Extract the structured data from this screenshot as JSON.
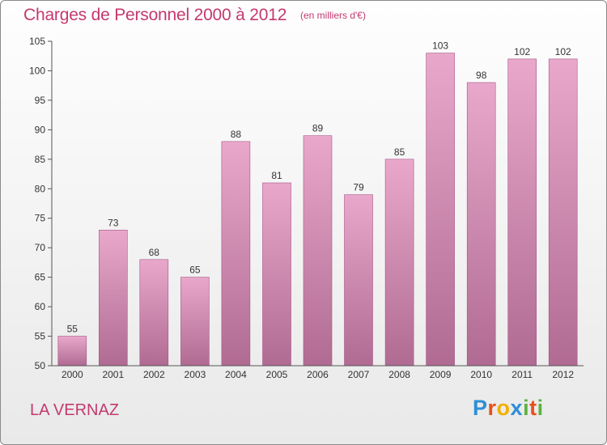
{
  "title": "Charges de Personnel 2000 à 2012",
  "subtitle": "(en milliers d'€)",
  "commune": "LA VERNAZ",
  "logo": {
    "letters": [
      "P",
      "r",
      "o",
      "x",
      "i",
      "t",
      "i"
    ],
    "colors": [
      "#2d8fd6",
      "#e8501a",
      "#f2b000",
      "#2d8fd6",
      "#59b33d",
      "#e8501a",
      "#59b33d"
    ]
  },
  "colors": {
    "accent": "#c4396f",
    "bar_light": "#e9a8cb",
    "bar_dark": "#b06b93"
  },
  "chart_data": {
    "type": "bar",
    "categories": [
      "2000",
      "2001",
      "2002",
      "2003",
      "2004",
      "2005",
      "2006",
      "2007",
      "2008",
      "2009",
      "2010",
      "2011",
      "2012"
    ],
    "values": [
      55,
      73,
      68,
      65,
      88,
      81,
      89,
      79,
      85,
      103,
      98,
      102,
      102
    ],
    "ylim": [
      50,
      105
    ],
    "yticks": [
      50,
      55,
      60,
      65,
      70,
      75,
      80,
      85,
      90,
      95,
      100,
      105
    ],
    "grid": false
  }
}
